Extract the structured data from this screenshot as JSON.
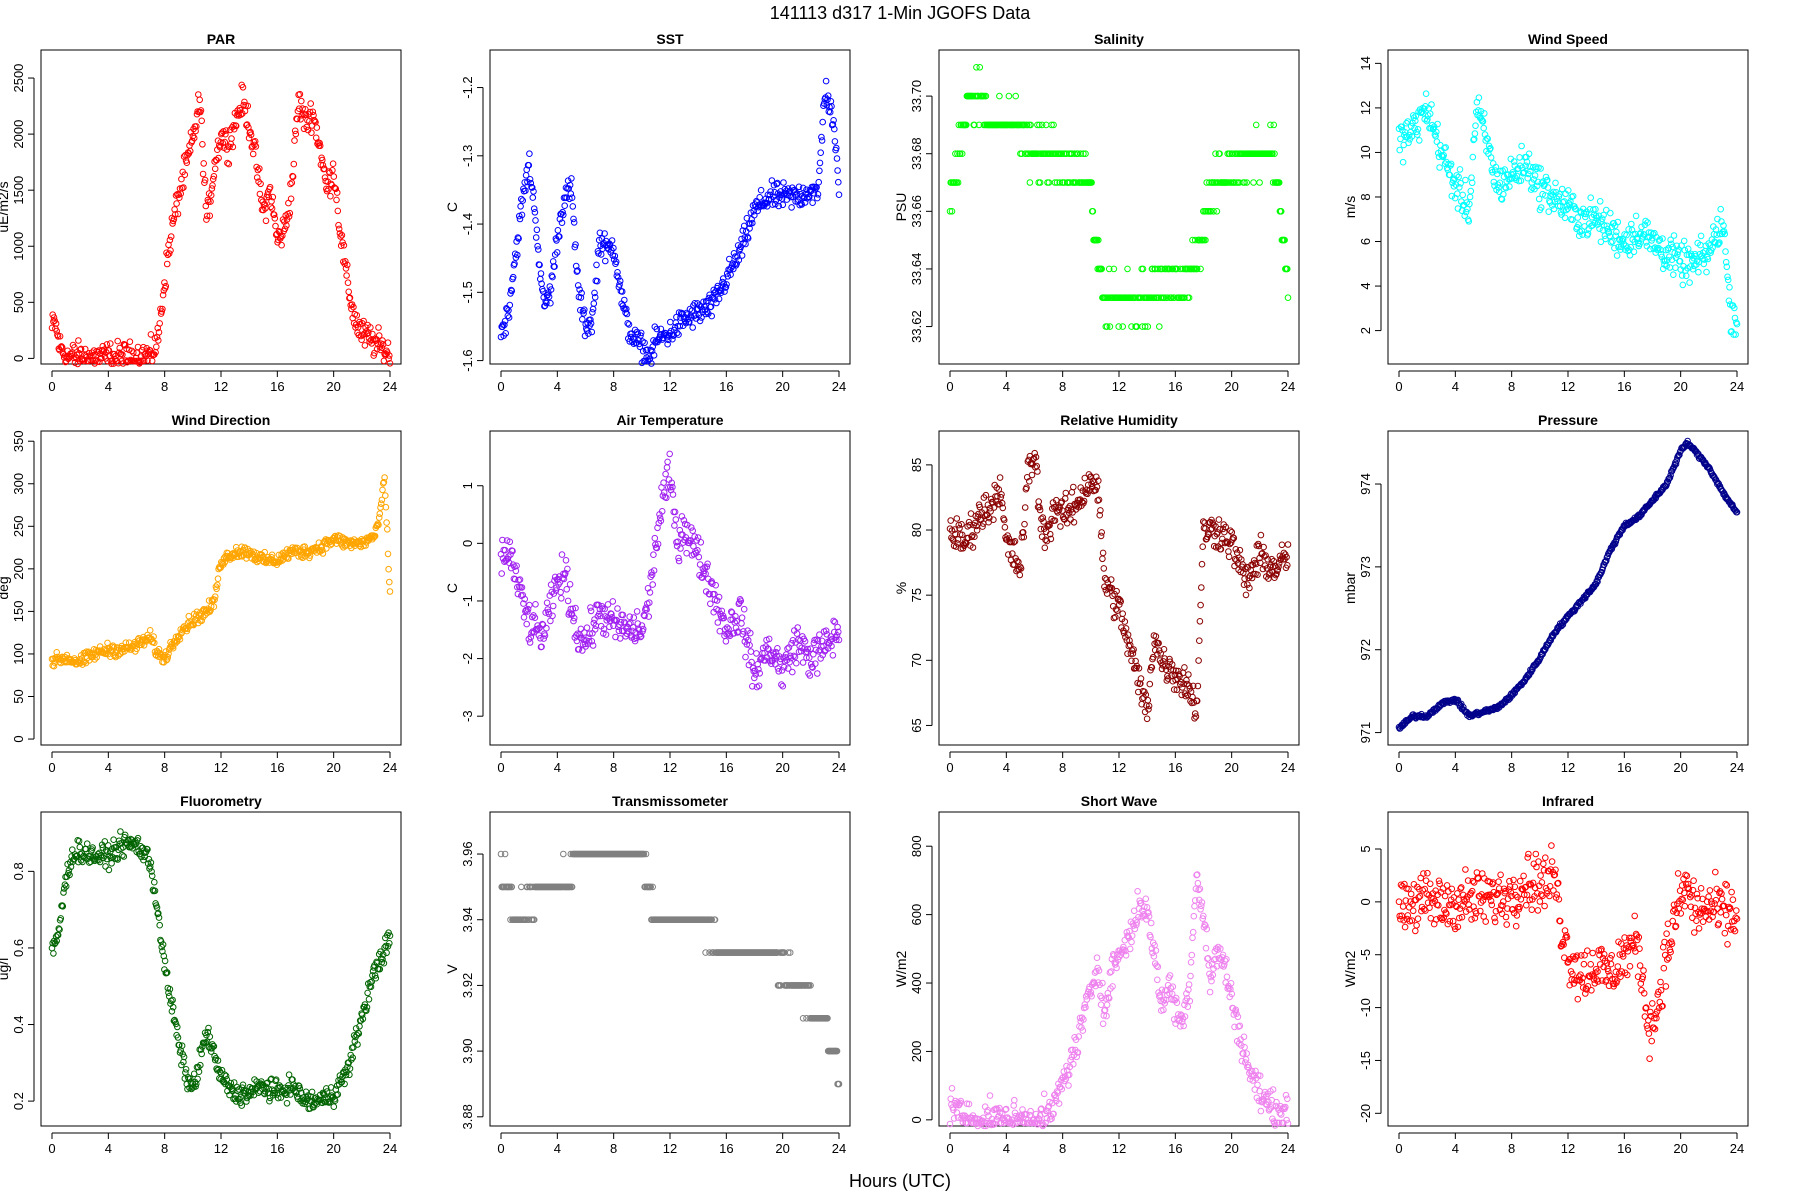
{
  "figure": {
    "title": "141113   d317   1-Min  JGOFS Data",
    "xlabel": "Hours (UTC)"
  },
  "chart_data": [
    {
      "id": "par",
      "type": "scatter",
      "title": "PAR",
      "ylabel": "uE/m2/s",
      "color": "#ff0000",
      "xlim": [
        0,
        24
      ],
      "xticks": [
        0,
        4,
        8,
        12,
        16,
        20,
        24
      ],
      "ylim": [
        -50,
        2750
      ],
      "yticks": [
        0,
        500,
        1000,
        1500,
        2000,
        2500
      ],
      "ytick_decimals": 0,
      "noise": 140,
      "x": [
        0,
        0.2,
        0.5,
        1,
        2,
        4,
        6,
        7,
        7.5,
        8,
        8.5,
        9,
        9.5,
        10,
        10.5,
        11,
        11.5,
        12,
        12.5,
        13,
        13.5,
        14,
        14.5,
        15,
        15.5,
        16,
        16.5,
        17,
        17.5,
        18,
        18.5,
        19,
        19.5,
        20,
        20.5,
        21,
        21.5,
        22,
        22.5,
        23,
        23.5,
        24
      ],
      "y": [
        260,
        330,
        120,
        20,
        10,
        10,
        10,
        30,
        150,
        700,
        1150,
        1450,
        1700,
        1950,
        2300,
        1200,
        1700,
        2000,
        1900,
        2100,
        2300,
        2100,
        1750,
        1300,
        1500,
        1050,
        1150,
        1500,
        2300,
        2100,
        2200,
        1900,
        1500,
        1700,
        1100,
        650,
        350,
        220,
        180,
        130,
        80,
        40
      ]
    },
    {
      "id": "sst",
      "type": "scatter",
      "title": "SST",
      "ylabel": "C",
      "color": "#0000ff",
      "xlim": [
        0,
        24
      ],
      "xticks": [
        0,
        4,
        8,
        12,
        16,
        20,
        24
      ],
      "ylim": [
        -1.605,
        -1.145
      ],
      "yticks": [
        -1.6,
        -1.5,
        -1.4,
        -1.3,
        -1.2
      ],
      "ytick_decimals": 1,
      "noise": 0.02,
      "x": [
        0,
        0.5,
        1,
        1.5,
        2,
        2.5,
        3,
        3.5,
        4,
        4.5,
        5,
        5.5,
        6,
        6.5,
        7,
        7.5,
        8,
        8.5,
        9,
        9.5,
        10,
        10.5,
        11,
        12,
        13,
        14,
        15,
        16,
        17,
        18,
        19,
        20,
        21,
        22,
        22.5,
        23,
        23.5,
        24
      ],
      "y": [
        -1.56,
        -1.53,
        -1.45,
        -1.37,
        -1.31,
        -1.4,
        -1.52,
        -1.5,
        -1.42,
        -1.36,
        -1.35,
        -1.5,
        -1.55,
        -1.54,
        -1.42,
        -1.44,
        -1.43,
        -1.5,
        -1.55,
        -1.57,
        -1.58,
        -1.6,
        -1.57,
        -1.56,
        -1.54,
        -1.53,
        -1.52,
        -1.48,
        -1.44,
        -1.38,
        -1.36,
        -1.36,
        -1.36,
        -1.35,
        -1.36,
        -1.2,
        -1.24,
        -1.34
      ]
    },
    {
      "id": "salinity",
      "type": "scatter",
      "title": "Salinity",
      "ylabel": "PSU",
      "color": "#00ff00",
      "xlim": [
        0,
        24
      ],
      "xticks": [
        0,
        4,
        8,
        12,
        16,
        20,
        24
      ],
      "ylim": [
        33.607,
        33.716
      ],
      "yticks": [
        33.62,
        33.64,
        33.66,
        33.68,
        33.7
      ],
      "ytick_decimals": 2,
      "noise": 0.008,
      "yquant": 0.01,
      "x": [
        0,
        0.5,
        1,
        2,
        3,
        4,
        5,
        6,
        7,
        8,
        9,
        10,
        10.5,
        11,
        12,
        13,
        14,
        15,
        16,
        17,
        18,
        18.5,
        19,
        20,
        21,
        22,
        23,
        23.5,
        24
      ],
      "y": [
        33.665,
        33.675,
        33.695,
        33.7,
        33.69,
        33.69,
        33.69,
        33.68,
        33.68,
        33.675,
        33.675,
        33.67,
        33.64,
        33.63,
        33.63,
        33.63,
        33.63,
        33.635,
        33.635,
        33.635,
        33.655,
        33.665,
        33.67,
        33.675,
        33.68,
        33.68,
        33.68,
        33.66,
        33.63
      ]
    },
    {
      "id": "windspeed",
      "type": "scatter",
      "title": "Wind Speed",
      "ylabel": "m/s",
      "color": "#00ffff",
      "xlim": [
        0,
        24
      ],
      "xticks": [
        0,
        4,
        8,
        12,
        16,
        20,
        24
      ],
      "ylim": [
        0.5,
        14.6
      ],
      "yticks": [
        2,
        4,
        6,
        8,
        10,
        12,
        14
      ],
      "ytick_decimals": 0,
      "noise": 0.9,
      "x": [
        0,
        1,
        2,
        3,
        4,
        5,
        5.5,
        6,
        7,
        8,
        9,
        10,
        11,
        12,
        13,
        14,
        15,
        16,
        17,
        18,
        19,
        20,
        21,
        22,
        23,
        23.5,
        24
      ],
      "y": [
        10.5,
        11,
        12,
        10,
        8.5,
        7.5,
        12,
        11,
        8.5,
        9,
        9.5,
        8.5,
        8,
        7.5,
        7,
        7,
        6.5,
        6,
        6.5,
        6,
        5.5,
        5,
        5,
        5.5,
        7,
        3,
        2.5
      ]
    },
    {
      "id": "winddir",
      "type": "scatter",
      "title": "Wind Direction",
      "ylabel": "deg",
      "color": "#ffa500",
      "xlim": [
        0,
        24
      ],
      "xticks": [
        0,
        4,
        8,
        12,
        16,
        20,
        24
      ],
      "ylim": [
        -7,
        362
      ],
      "yticks": [
        0,
        50,
        100,
        150,
        200,
        250,
        300,
        350
      ],
      "ytick_decimals": 0,
      "noise": 8,
      "x": [
        0,
        1,
        2,
        3,
        4,
        5,
        6,
        7,
        7.5,
        8,
        9,
        10,
        11,
        11.5,
        12,
        13,
        14,
        15,
        16,
        17,
        18,
        19,
        20,
        21,
        22,
        23,
        23.4,
        23.6,
        24
      ],
      "y": [
        92,
        95,
        90,
        100,
        105,
        105,
        110,
        120,
        100,
        95,
        125,
        140,
        150,
        160,
        210,
        220,
        220,
        210,
        210,
        220,
        220,
        225,
        235,
        230,
        230,
        240,
        275,
        310,
        170
      ]
    },
    {
      "id": "airtemp",
      "type": "scatter",
      "title": "Air Temperature",
      "ylabel": "C",
      "color": "#a020f0",
      "xlim": [
        0,
        24
      ],
      "xticks": [
        0,
        4,
        8,
        12,
        16,
        20,
        24
      ],
      "ylim": [
        -3.5,
        1.95
      ],
      "yticks": [
        -3,
        -2,
        -1,
        0,
        1
      ],
      "ytick_decimals": 0,
      "noise": 0.35,
      "x": [
        0,
        0.5,
        1,
        1.5,
        2,
        3,
        4,
        4.5,
        5,
        5.5,
        6,
        7,
        8,
        9,
        10,
        10.5,
        11,
        11.5,
        12,
        12.5,
        13,
        14,
        15,
        16,
        17,
        18,
        19,
        20,
        21,
        22,
        23,
        24
      ],
      "y": [
        -0.3,
        -0.1,
        -0.5,
        -1,
        -1.4,
        -1.6,
        -0.7,
        -0.5,
        -1.1,
        -1.6,
        -1.7,
        -1.2,
        -1.4,
        -1.5,
        -1.5,
        -1,
        0,
        0.8,
        1.2,
        0,
        0.3,
        -0.2,
        -0.8,
        -1.5,
        -1.2,
        -2.3,
        -1.8,
        -2.2,
        -1.7,
        -2,
        -1.8,
        -1.5
      ]
    },
    {
      "id": "rh",
      "type": "scatter",
      "title": "Relative Humidity",
      "ylabel": "%",
      "color": "#8b0000",
      "xlim": [
        0,
        24
      ],
      "xticks": [
        0,
        4,
        8,
        12,
        16,
        20,
        24
      ],
      "ylim": [
        63.5,
        87.6
      ],
      "yticks": [
        65,
        70,
        75,
        80,
        85
      ],
      "ytick_decimals": 0,
      "noise": 1.4,
      "x": [
        0,
        1,
        2,
        3,
        3.5,
        4,
        4.5,
        5,
        5.5,
        6,
        6.5,
        7,
        7.5,
        8,
        9,
        10,
        10.5,
        11,
        12,
        13,
        13.5,
        14,
        14.5,
        15,
        16,
        17,
        17.5,
        18,
        19,
        20,
        21,
        22,
        23,
        24
      ],
      "y": [
        80,
        79,
        81,
        82,
        83.5,
        79,
        78,
        77,
        84,
        86,
        80,
        80,
        82,
        81,
        82,
        84,
        83,
        76,
        74,
        70,
        68,
        66,
        72,
        70,
        69,
        68,
        66,
        80,
        80,
        79,
        76,
        78,
        77,
        78
      ]
    },
    {
      "id": "pressure",
      "type": "scatter",
      "title": "Pressure",
      "ylabel": "mbar",
      "color": "#00008b",
      "xlim": [
        0,
        24
      ],
      "xticks": [
        0,
        4,
        8,
        12,
        16,
        20,
        24
      ],
      "ylim": [
        970.85,
        974.64
      ],
      "yticks": [
        971,
        972,
        973,
        974
      ],
      "ytick_decimals": 0,
      "noise": 0.025,
      "x": [
        0,
        1,
        2,
        3,
        4,
        5,
        6,
        7,
        8,
        9,
        10,
        11,
        12,
        13,
        14,
        15,
        16,
        17,
        18,
        19,
        20,
        20.5,
        21,
        22,
        23,
        24
      ],
      "y": [
        971.05,
        971.2,
        971.2,
        971.35,
        971.4,
        971.2,
        971.25,
        971.3,
        971.45,
        971.65,
        971.9,
        972.2,
        972.4,
        972.6,
        972.8,
        973.2,
        973.5,
        973.6,
        973.8,
        974.0,
        974.4,
        974.5,
        974.4,
        974.2,
        973.9,
        973.65
      ]
    },
    {
      "id": "fluor",
      "type": "scatter",
      "title": "Fluorometry",
      "ylabel": "ug/l",
      "color": "#006400",
      "xlim": [
        0,
        24
      ],
      "xticks": [
        0,
        4,
        8,
        12,
        16,
        20,
        24
      ],
      "ylim": [
        0.135,
        0.955
      ],
      "yticks": [
        0.2,
        0.4,
        0.6,
        0.8
      ],
      "ytick_decimals": 1,
      "noise": 0.03,
      "x": [
        0,
        0.5,
        1,
        1.5,
        2,
        3,
        4,
        5,
        6,
        6.5,
        7,
        7.5,
        8,
        8.5,
        9,
        9.5,
        10,
        11,
        12,
        13,
        14,
        15,
        16,
        17,
        18,
        19,
        20,
        21,
        22,
        23,
        24
      ],
      "y": [
        0.58,
        0.65,
        0.78,
        0.85,
        0.85,
        0.84,
        0.84,
        0.87,
        0.87,
        0.85,
        0.82,
        0.7,
        0.55,
        0.45,
        0.35,
        0.27,
        0.23,
        0.38,
        0.26,
        0.22,
        0.22,
        0.24,
        0.22,
        0.24,
        0.2,
        0.2,
        0.22,
        0.28,
        0.42,
        0.55,
        0.62
      ]
    },
    {
      "id": "trans",
      "type": "scatter",
      "title": "Transmissometer",
      "ylabel": "V",
      "color": "#808080",
      "xlim": [
        0,
        24
      ],
      "xticks": [
        0,
        4,
        8,
        12,
        16,
        20,
        24
      ],
      "ylim": [
        3.8772,
        3.9728
      ],
      "yticks": [
        3.88,
        3.9,
        3.92,
        3.94,
        3.96
      ],
      "ytick_decimals": 2,
      "noise": 0.004,
      "yquant": 0.01,
      "x": [
        0,
        0.5,
        1,
        2,
        3,
        4,
        5,
        6,
        7,
        8,
        9,
        10,
        11,
        12,
        13,
        14,
        15,
        16,
        17,
        18,
        19,
        20,
        21,
        22,
        23,
        23.5,
        24
      ],
      "y": [
        3.955,
        3.95,
        3.94,
        3.945,
        3.95,
        3.95,
        3.955,
        3.96,
        3.96,
        3.96,
        3.96,
        3.96,
        3.94,
        3.94,
        3.94,
        3.94,
        3.935,
        3.93,
        3.93,
        3.93,
        3.93,
        3.925,
        3.92,
        3.915,
        3.91,
        3.9,
        3.895
      ]
    },
    {
      "id": "sw",
      "type": "scatter",
      "title": "Short Wave",
      "ylabel": "W/m2",
      "color": "#ee82ee",
      "xlim": [
        0,
        24
      ],
      "xticks": [
        0,
        4,
        8,
        12,
        16,
        20,
        24
      ],
      "ylim": [
        -18,
        900
      ],
      "yticks": [
        0,
        200,
        400,
        600,
        800
      ],
      "ytick_decimals": 0,
      "noise": 50,
      "x": [
        0,
        0.3,
        0.7,
        1,
        2,
        4,
        6,
        7,
        7.5,
        8,
        8.5,
        9,
        9.5,
        10,
        10.5,
        11,
        11.5,
        12,
        13,
        13.5,
        14,
        14.5,
        15,
        15.5,
        16,
        16.5,
        17,
        17.5,
        18,
        18.5,
        19,
        19.5,
        20,
        21,
        21.5,
        22,
        22.5,
        23,
        24
      ],
      "y": [
        40,
        50,
        20,
        5,
        2,
        2,
        2,
        10,
        50,
        110,
        160,
        220,
        300,
        380,
        460,
        300,
        440,
        480,
        560,
        640,
        600,
        500,
        330,
        400,
        330,
        280,
        390,
        720,
        600,
        400,
        500,
        450,
        350,
        180,
        120,
        80,
        50,
        30,
        15
      ]
    },
    {
      "id": "ir",
      "type": "scatter",
      "title": "Infrared",
      "ylabel": "W/m2",
      "color": "#ff0000",
      "xlim": [
        0,
        24
      ],
      "xticks": [
        0,
        4,
        8,
        12,
        16,
        20,
        24
      ],
      "ylim": [
        -21.2,
        8.5
      ],
      "yticks": [
        -20,
        -15,
        -10,
        -5,
        0,
        5
      ],
      "ytick_decimals": 0,
      "noise": 2.8,
      "x": [
        0,
        1,
        2,
        3,
        4,
        5,
        6,
        7,
        8,
        9,
        10,
        10.5,
        11,
        11.5,
        12,
        13,
        14,
        15,
        16,
        17,
        17.5,
        18,
        19,
        20,
        20.5,
        21,
        22,
        23,
        24
      ],
      "y": [
        0,
        0,
        0,
        -0.3,
        0,
        0.2,
        0.3,
        0.3,
        0.8,
        2,
        2,
        1.5,
        3,
        -2,
        -5,
        -7,
        -6,
        -7,
        -5,
        -4,
        -10,
        -12,
        -5,
        0.5,
        1.5,
        -1,
        -0.5,
        -1,
        -1.5
      ]
    }
  ]
}
